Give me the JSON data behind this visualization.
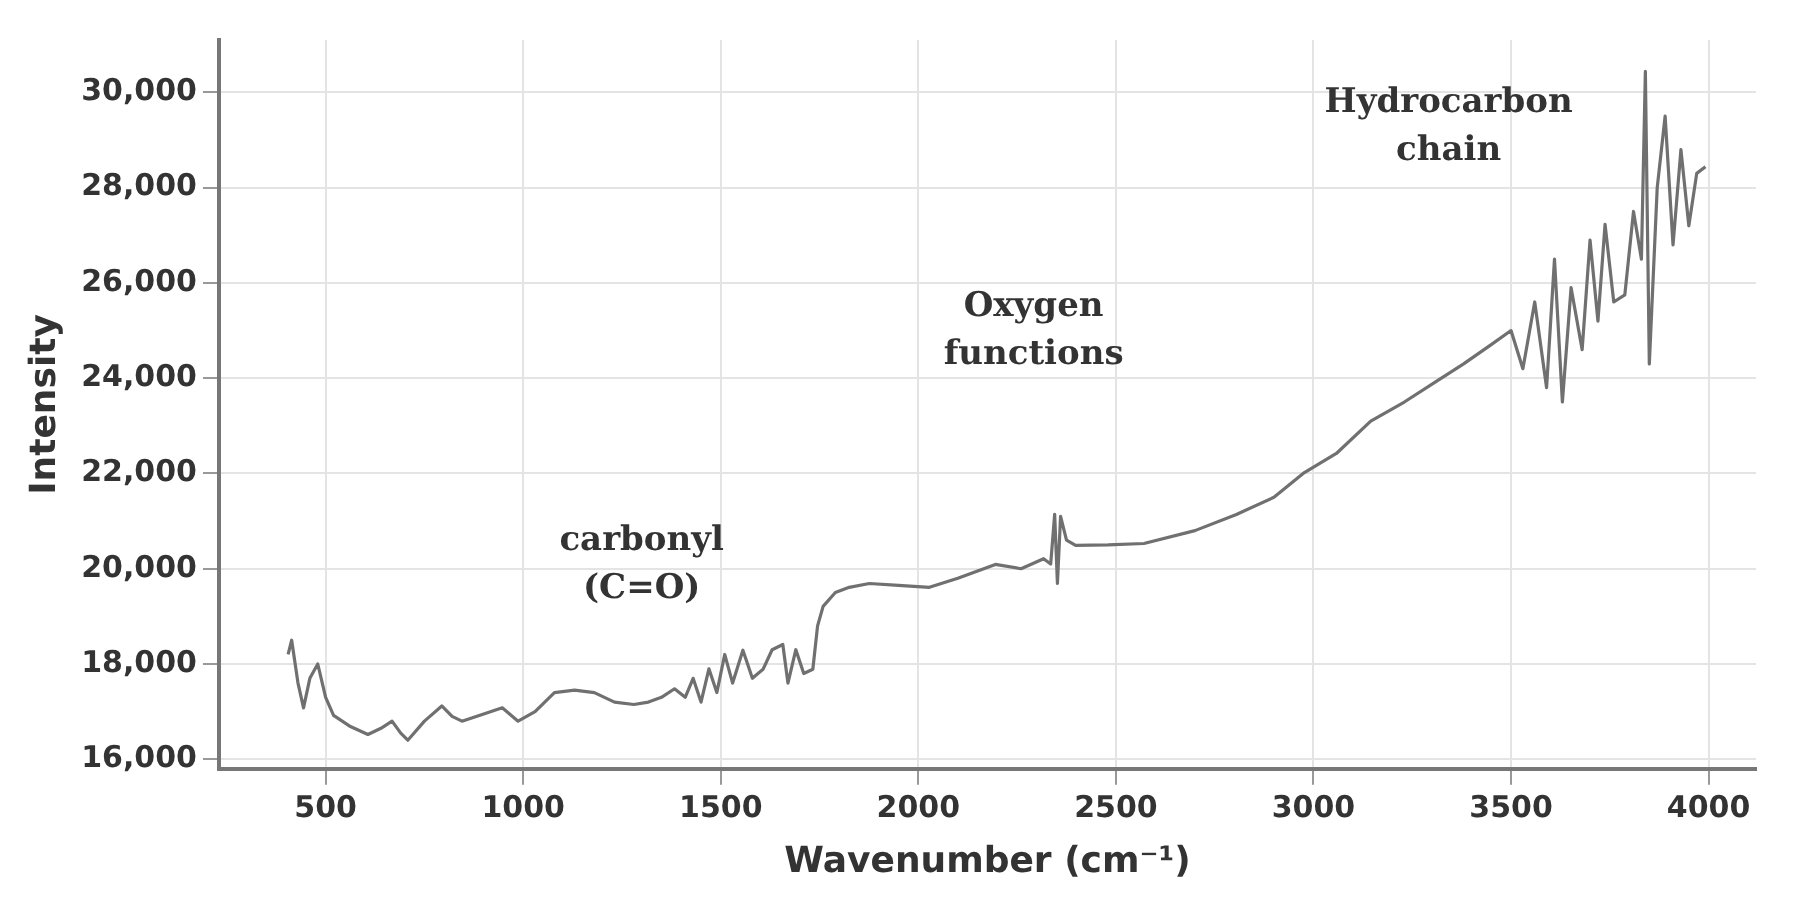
{
  "chart_data": {
    "type": "line",
    "xlabel": "Wavenumber (cm⁻¹)",
    "ylabel": "Intensity",
    "x": [
      405,
      414,
      430,
      444,
      460,
      480,
      500,
      520,
      560,
      607,
      640,
      668,
      690,
      708,
      750,
      794,
      820,
      845,
      900,
      947,
      987,
      1030,
      1079,
      1130,
      1180,
      1231,
      1280,
      1317,
      1350,
      1383,
      1410,
      1430,
      1450,
      1470,
      1490,
      1510,
      1530,
      1556,
      1580,
      1607,
      1630,
      1657,
      1670,
      1690,
      1710,
      1733,
      1745,
      1759,
      1790,
      1825,
      1876,
      1950,
      2028,
      2100,
      2195,
      2260,
      2317,
      2335,
      2345,
      2352,
      2360,
      2375,
      2398,
      2480,
      2571,
      2700,
      2805,
      2900,
      2977,
      3058,
      3145,
      3230,
      3312,
      3380,
      3449,
      3500,
      3530,
      3560,
      3590,
      3610,
      3630,
      3652,
      3680,
      3700,
      3720,
      3738,
      3760,
      3788,
      3810,
      3830,
      3840,
      3850,
      3870,
      3890,
      3910,
      3930,
      3950,
      3970,
      3992
    ],
    "values": [
      18200,
      18500,
      17600,
      17080,
      17700,
      18000,
      17300,
      16920,
      16700,
      16520,
      16650,
      16800,
      16550,
      16400,
      16800,
      17120,
      16900,
      16800,
      16950,
      17080,
      16800,
      17000,
      17400,
      17450,
      17400,
      17200,
      17150,
      17200,
      17300,
      17480,
      17300,
      17700,
      17200,
      17900,
      17400,
      18200,
      17600,
      18290,
      17700,
      17890,
      18300,
      18410,
      17600,
      18300,
      17800,
      17890,
      18800,
      19210,
      19500,
      19610,
      19690,
      19650,
      19610,
      19800,
      20090,
      20000,
      20210,
      20100,
      21140,
      19690,
      21100,
      20600,
      20490,
      20500,
      20530,
      20800,
      21140,
      21500,
      22020,
      22420,
      23100,
      23500,
      23940,
      24300,
      24700,
      25000,
      24200,
      25600,
      23800,
      26500,
      23500,
      25900,
      24600,
      26900,
      25200,
      27230,
      25600,
      25750,
      27500,
      26500,
      30440,
      24300,
      28000,
      29500,
      26800,
      28800,
      27200,
      28300,
      28440
    ],
    "color": "#707070",
    "xlim": [
      230,
      4120
    ],
    "xticks": [
      500,
      1000,
      1500,
      2000,
      2500,
      3000,
      3500,
      4000
    ],
    "ylim": [
      15800,
      31100
    ],
    "yticks": [
      {
        "value": 16000,
        "label": "16,000"
      },
      {
        "value": 18000,
        "label": "18,000"
      },
      {
        "value": 20000,
        "label": "20,000"
      },
      {
        "value": 22000,
        "label": "22,000"
      },
      {
        "value": 24000,
        "label": "24,000"
      },
      {
        "value": 26000,
        "label": "26,000"
      },
      {
        "value": 28000,
        "label": "28,000"
      },
      {
        "value": 30000,
        "label": "30,000"
      }
    ],
    "grid": true,
    "marker": "none",
    "line_style": "solid",
    "annotations": [
      "carbonyl (C=O)",
      "Oxygen functions",
      "Hydrocarbon chain"
    ]
  }
}
